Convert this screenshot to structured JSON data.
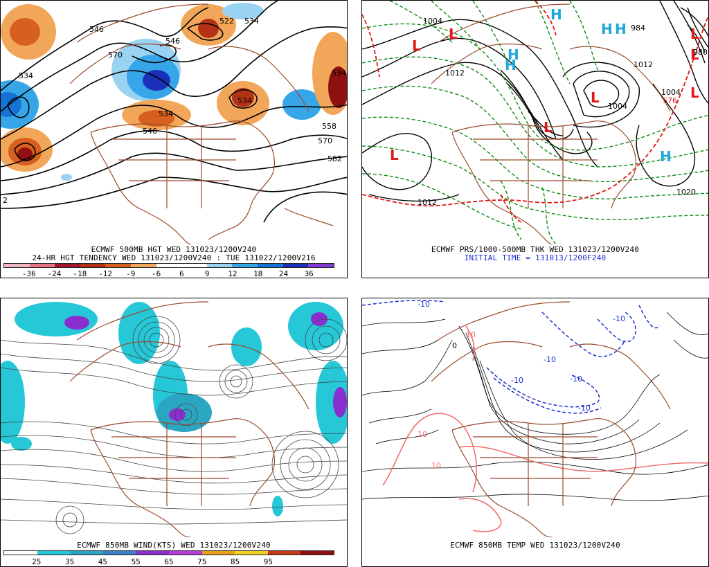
{
  "panels": {
    "p500": {
      "caption": "ECMWF 500MB HGT WED 131023/1200V240",
      "caption2": "24-HR HGT TENDENCY WED 131023/1200V240 : TUE 131022/1200V216",
      "contour_labels": [
        "534",
        "546",
        "570",
        "522",
        "534",
        "534",
        "534",
        "546",
        "534",
        "546",
        "558",
        "570",
        "582",
        "2"
      ],
      "legend_labels": [
        "-36",
        "-24",
        "-18",
        "-12",
        "-9",
        "-6",
        "6",
        "9",
        "12",
        "18",
        "24",
        "36"
      ],
      "legend_colors": [
        "#f4b6c2",
        "#e87585",
        "#a0182b",
        "#b33216",
        "#d8601e",
        "#f2a65a",
        "#ffffff",
        "#ffffff",
        "#9ad2f2",
        "#37a6e8",
        "#1473d4",
        "#1a30b8",
        "#7e3cd0"
      ]
    },
    "pthk": {
      "caption": "ECMWF PRS/1000-500MB THK WED 131023/1200V240",
      "caption2": "INITIAL TIME = 131013/1200F240",
      "contour_labels": [
        "1004",
        "1012",
        "1012",
        "1012",
        "1020",
        "1004",
        "980",
        "1004",
        "984",
        "576"
      ],
      "low_symbol": "L",
      "high_symbol": "H"
    },
    "pwind": {
      "caption": "ECMWF 850MB WIND(KTS) WED 131023/1200V240",
      "legend_labels": [
        "25",
        "35",
        "45",
        "55",
        "65",
        "75",
        "85",
        "95"
      ],
      "legend_colors": [
        "#ffffff",
        "#26c8d8",
        "#2aa6c2",
        "#3b82c8",
        "#8a2fcf",
        "#b83bd6",
        "#e8a21a",
        "#f0d020",
        "#c43a16",
        "#8f1010"
      ]
    },
    "ptemp": {
      "caption": "ECMWF 850MB TEMP WED 131023/1200V240",
      "contour_labels": [
        "-10",
        "-10",
        "-10",
        "-10",
        "-10",
        "-10",
        "10",
        "10",
        "10",
        "0"
      ]
    }
  },
  "colors": {
    "coast": "#9a4a2a",
    "height_contour": "#000000",
    "thickness_low": "#0f8a12",
    "thickness_high": "#e01818",
    "pressure_low_letter": "#e01818",
    "pressure_high_letter": "#20a8d8",
    "streamline": "#444444",
    "temp_cold": "#1a2fd0",
    "temp_warm": "#f07070"
  }
}
